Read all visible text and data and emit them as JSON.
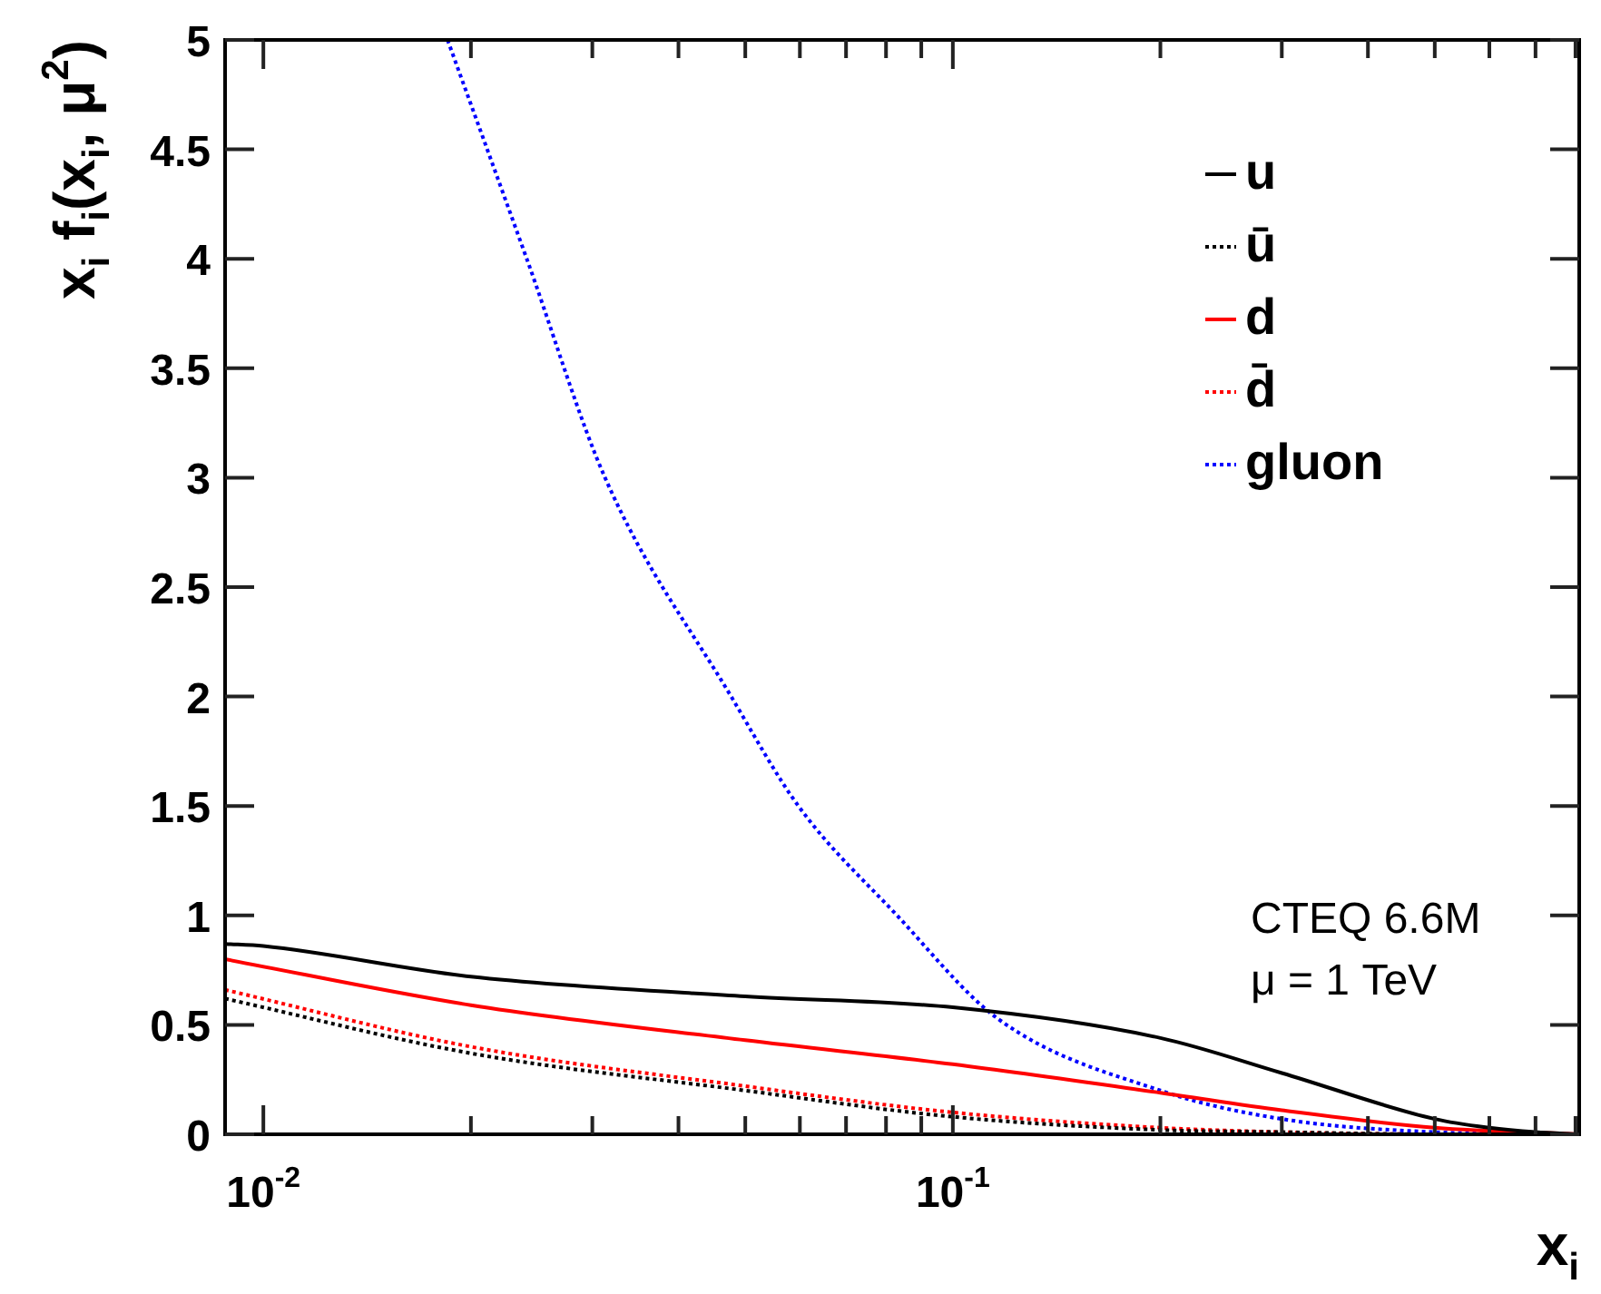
{
  "chart_data": {
    "type": "line",
    "xlabel": "x$_{i}$",
    "ylabel": "x$_{i}$ f$_{i}$(x$_{i}$, μ$^{2}$)",
    "log": "x",
    "legend": "top right",
    "marker": "none",
    "xlim": [
      0.0088,
      0.81
    ],
    "ylim": [
      0,
      5
    ],
    "xticks": [
      {
        "value": 0.01,
        "label": "10$^{-2}$"
      },
      {
        "value": 0.02,
        "label": null
      },
      {
        "value": 0.03,
        "label": null
      },
      {
        "value": 0.04,
        "label": null
      },
      {
        "value": 0.05,
        "label": null
      },
      {
        "value": 0.06,
        "label": null
      },
      {
        "value": 0.07,
        "label": null
      },
      {
        "value": 0.08,
        "label": null
      },
      {
        "value": 0.09,
        "label": null
      },
      {
        "value": 0.1,
        "label": "10$^{-1}$"
      },
      {
        "value": 0.2,
        "label": null
      },
      {
        "value": 0.3,
        "label": null
      },
      {
        "value": 0.4,
        "label": null
      },
      {
        "value": 0.5,
        "label": null
      },
      {
        "value": 0.6,
        "label": null
      },
      {
        "value": 0.7,
        "label": null
      },
      {
        "value": 0.8,
        "label": null
      }
    ],
    "yticks": [
      0,
      0.5,
      1,
      1.5,
      2,
      2.5,
      3,
      3.5,
      4,
      4.5,
      5
    ],
    "annotations": [
      "CTEQ 6.6M",
      "μ = 1 TeV"
    ],
    "series": [
      {
        "name": "u",
        "color": "#000000",
        "line_style": "solid",
        "x": [
          0.0088,
          0.01,
          0.02,
          0.05,
          0.1,
          0.2,
          0.3,
          0.5,
          0.6,
          0.7,
          0.81
        ],
        "values": [
          0.87,
          0.86,
          0.72,
          0.63,
          0.58,
          0.44,
          0.28,
          0.07,
          0.03,
          0.01,
          0
        ]
      },
      {
        "name": "ū",
        "color": "#000000",
        "line_style": "dotted",
        "x": [
          0.0088,
          0.02,
          0.05,
          0.1,
          0.2,
          0.3,
          0.5,
          0.81
        ],
        "values": [
          0.62,
          0.37,
          0.2,
          0.08,
          0.02,
          0.01,
          0,
          0
        ]
      },
      {
        "name": "d",
        "color": "#ff0000",
        "line_style": "solid",
        "x": [
          0.0088,
          0.02,
          0.05,
          0.1,
          0.2,
          0.3,
          0.5,
          0.81
        ],
        "values": [
          0.8,
          0.59,
          0.43,
          0.32,
          0.19,
          0.11,
          0.03,
          0
        ]
      },
      {
        "name": "d̄",
        "color": "#ff0000",
        "line_style": "dotted",
        "x": [
          0.0088,
          0.02,
          0.05,
          0.1,
          0.2,
          0.3,
          0.5,
          0.81
        ],
        "values": [
          0.66,
          0.4,
          0.22,
          0.1,
          0.03,
          0.01,
          0,
          0
        ]
      },
      {
        "name": "gluon",
        "color": "#0000ff",
        "line_style": "dotted",
        "x": [
          0.0185,
          0.0241,
          0.0313,
          0.0477,
          0.0597,
          0.083,
          0.116,
          0.2,
          0.3,
          0.5,
          0.81
        ],
        "values": [
          5,
          4,
          3,
          2,
          1.5,
          1,
          0.53,
          0.2,
          0.07,
          0.01,
          0
        ]
      }
    ]
  }
}
